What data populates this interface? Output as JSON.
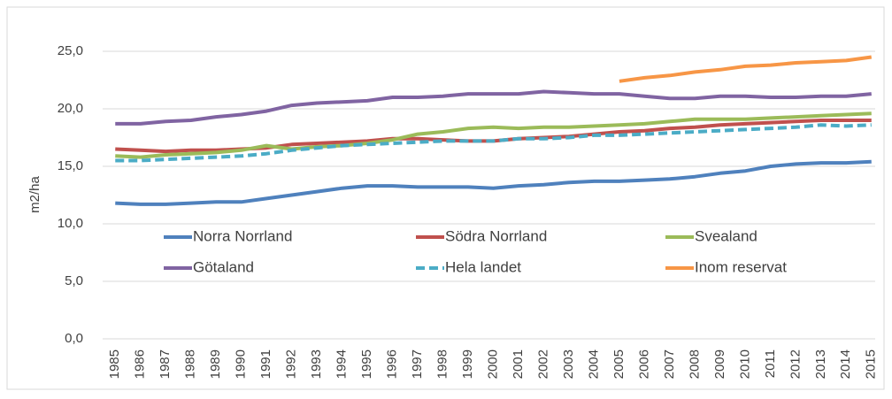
{
  "chart_data": {
    "type": "line",
    "y_label": "m2/ha",
    "categories": [
      "1985",
      "1986",
      "1987",
      "1988",
      "1989",
      "1990",
      "1991",
      "1992",
      "1993",
      "1994",
      "1995",
      "1996",
      "1997",
      "1998",
      "1999",
      "2000",
      "2001",
      "2002",
      "2003",
      "2004",
      "2005",
      "2006",
      "2007",
      "2008",
      "2009",
      "2010",
      "2011",
      "2012",
      "2013",
      "2014",
      "2015"
    ],
    "series": [
      {
        "name": "Norra Norrland",
        "color": "#4f81bd",
        "values": [
          11.8,
          11.7,
          11.7,
          11.8,
          11.9,
          11.9,
          12.2,
          12.5,
          12.8,
          13.1,
          13.3,
          13.3,
          13.2,
          13.2,
          13.2,
          13.1,
          13.3,
          13.4,
          13.6,
          13.7,
          13.7,
          13.8,
          13.9,
          14.1,
          14.4,
          14.6,
          15.0,
          15.2,
          15.3,
          15.3,
          15.4
        ]
      },
      {
        "name": "Södra Norrland",
        "color": "#c0504d",
        "values": [
          16.5,
          16.4,
          16.3,
          16.4,
          16.4,
          16.5,
          16.6,
          16.9,
          17.0,
          17.1,
          17.2,
          17.4,
          17.4,
          17.3,
          17.2,
          17.2,
          17.4,
          17.5,
          17.6,
          17.8,
          18.0,
          18.1,
          18.3,
          18.4,
          18.6,
          18.7,
          18.8,
          18.9,
          19.0,
          19.0,
          19.0
        ]
      },
      {
        "name": "Svealand",
        "color": "#9bbb59",
        "values": [
          15.9,
          15.8,
          16.0,
          16.1,
          16.2,
          16.4,
          16.8,
          16.5,
          16.7,
          16.8,
          17.0,
          17.3,
          17.8,
          18.0,
          18.3,
          18.4,
          18.3,
          18.4,
          18.4,
          18.5,
          18.6,
          18.7,
          18.9,
          19.1,
          19.1,
          19.1,
          19.2,
          19.3,
          19.4,
          19.5,
          19.6
        ]
      },
      {
        "name": "Götaland",
        "color": "#8064a2",
        "values": [
          18.7,
          18.7,
          18.9,
          19.0,
          19.3,
          19.5,
          19.8,
          20.3,
          20.5,
          20.6,
          20.7,
          21.0,
          21.0,
          21.1,
          21.3,
          21.3,
          21.3,
          21.5,
          21.4,
          21.3,
          21.3,
          21.1,
          20.9,
          20.9,
          21.1,
          21.1,
          21.0,
          21.0,
          21.1,
          21.1,
          21.3
        ]
      },
      {
        "name": "Hela landet",
        "color": "#4bacc6",
        "dashed": true,
        "values": [
          15.5,
          15.5,
          15.6,
          15.7,
          15.8,
          15.9,
          16.1,
          16.4,
          16.6,
          16.8,
          16.9,
          17.0,
          17.1,
          17.2,
          17.2,
          17.2,
          17.4,
          17.4,
          17.5,
          17.7,
          17.7,
          17.8,
          17.9,
          18.0,
          18.1,
          18.2,
          18.3,
          18.4,
          18.6,
          18.5,
          18.6
        ]
      },
      {
        "name": "Inom reservat",
        "color": "#f79646",
        "values": [
          null,
          null,
          null,
          null,
          null,
          null,
          null,
          null,
          null,
          null,
          null,
          null,
          null,
          null,
          null,
          null,
          null,
          null,
          null,
          null,
          22.4,
          22.7,
          22.9,
          23.2,
          23.4,
          23.7,
          23.8,
          24.0,
          24.1,
          24.2,
          24.5
        ]
      }
    ],
    "ylim": [
      0,
      25
    ],
    "yticks": [
      {
        "value": 0,
        "label": "0,0"
      },
      {
        "value": 5,
        "label": "5,0"
      },
      {
        "value": 10,
        "label": "10,0"
      },
      {
        "value": 15,
        "label": "15,0"
      },
      {
        "value": 20,
        "label": "20,0"
      },
      {
        "value": 25,
        "label": "25,0"
      }
    ],
    "grid": true
  }
}
